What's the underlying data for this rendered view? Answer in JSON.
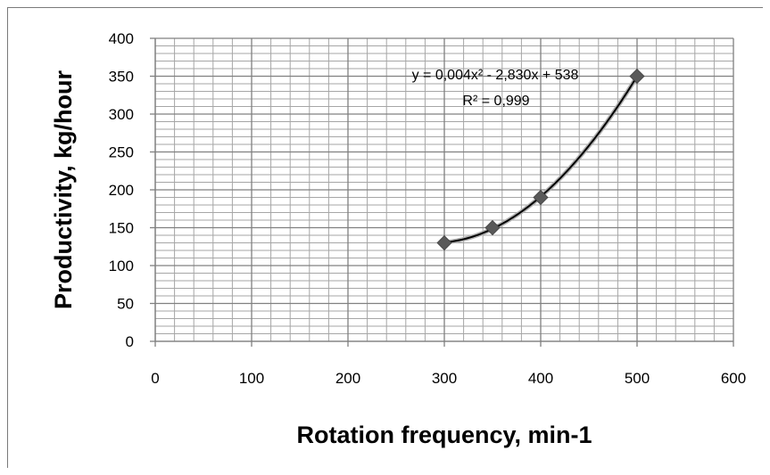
{
  "chart_data": {
    "type": "scatter",
    "xlabel": "Rotation frequency, min-1",
    "ylabel": "Productivity, kg/hour",
    "xlim": [
      0,
      600
    ],
    "ylim": [
      0,
      400
    ],
    "x_ticks": [
      "0",
      "100",
      "200",
      "300",
      "400",
      "500",
      "600"
    ],
    "y_ticks": [
      "0",
      "50",
      "100",
      "150",
      "200",
      "250",
      "300",
      "350",
      "400"
    ],
    "grid": true,
    "marker_color": "#595959",
    "trendline_color": "#000000",
    "series": [
      {
        "x": [
          300,
          350,
          400,
          500
        ],
        "y": [
          130,
          150,
          190,
          350
        ]
      }
    ],
    "trendline": {
      "type": "polynomial",
      "order": 2,
      "equation": "y = 0,004x² - 2,830x + 538",
      "r_squared": "R² = 0,999"
    }
  }
}
